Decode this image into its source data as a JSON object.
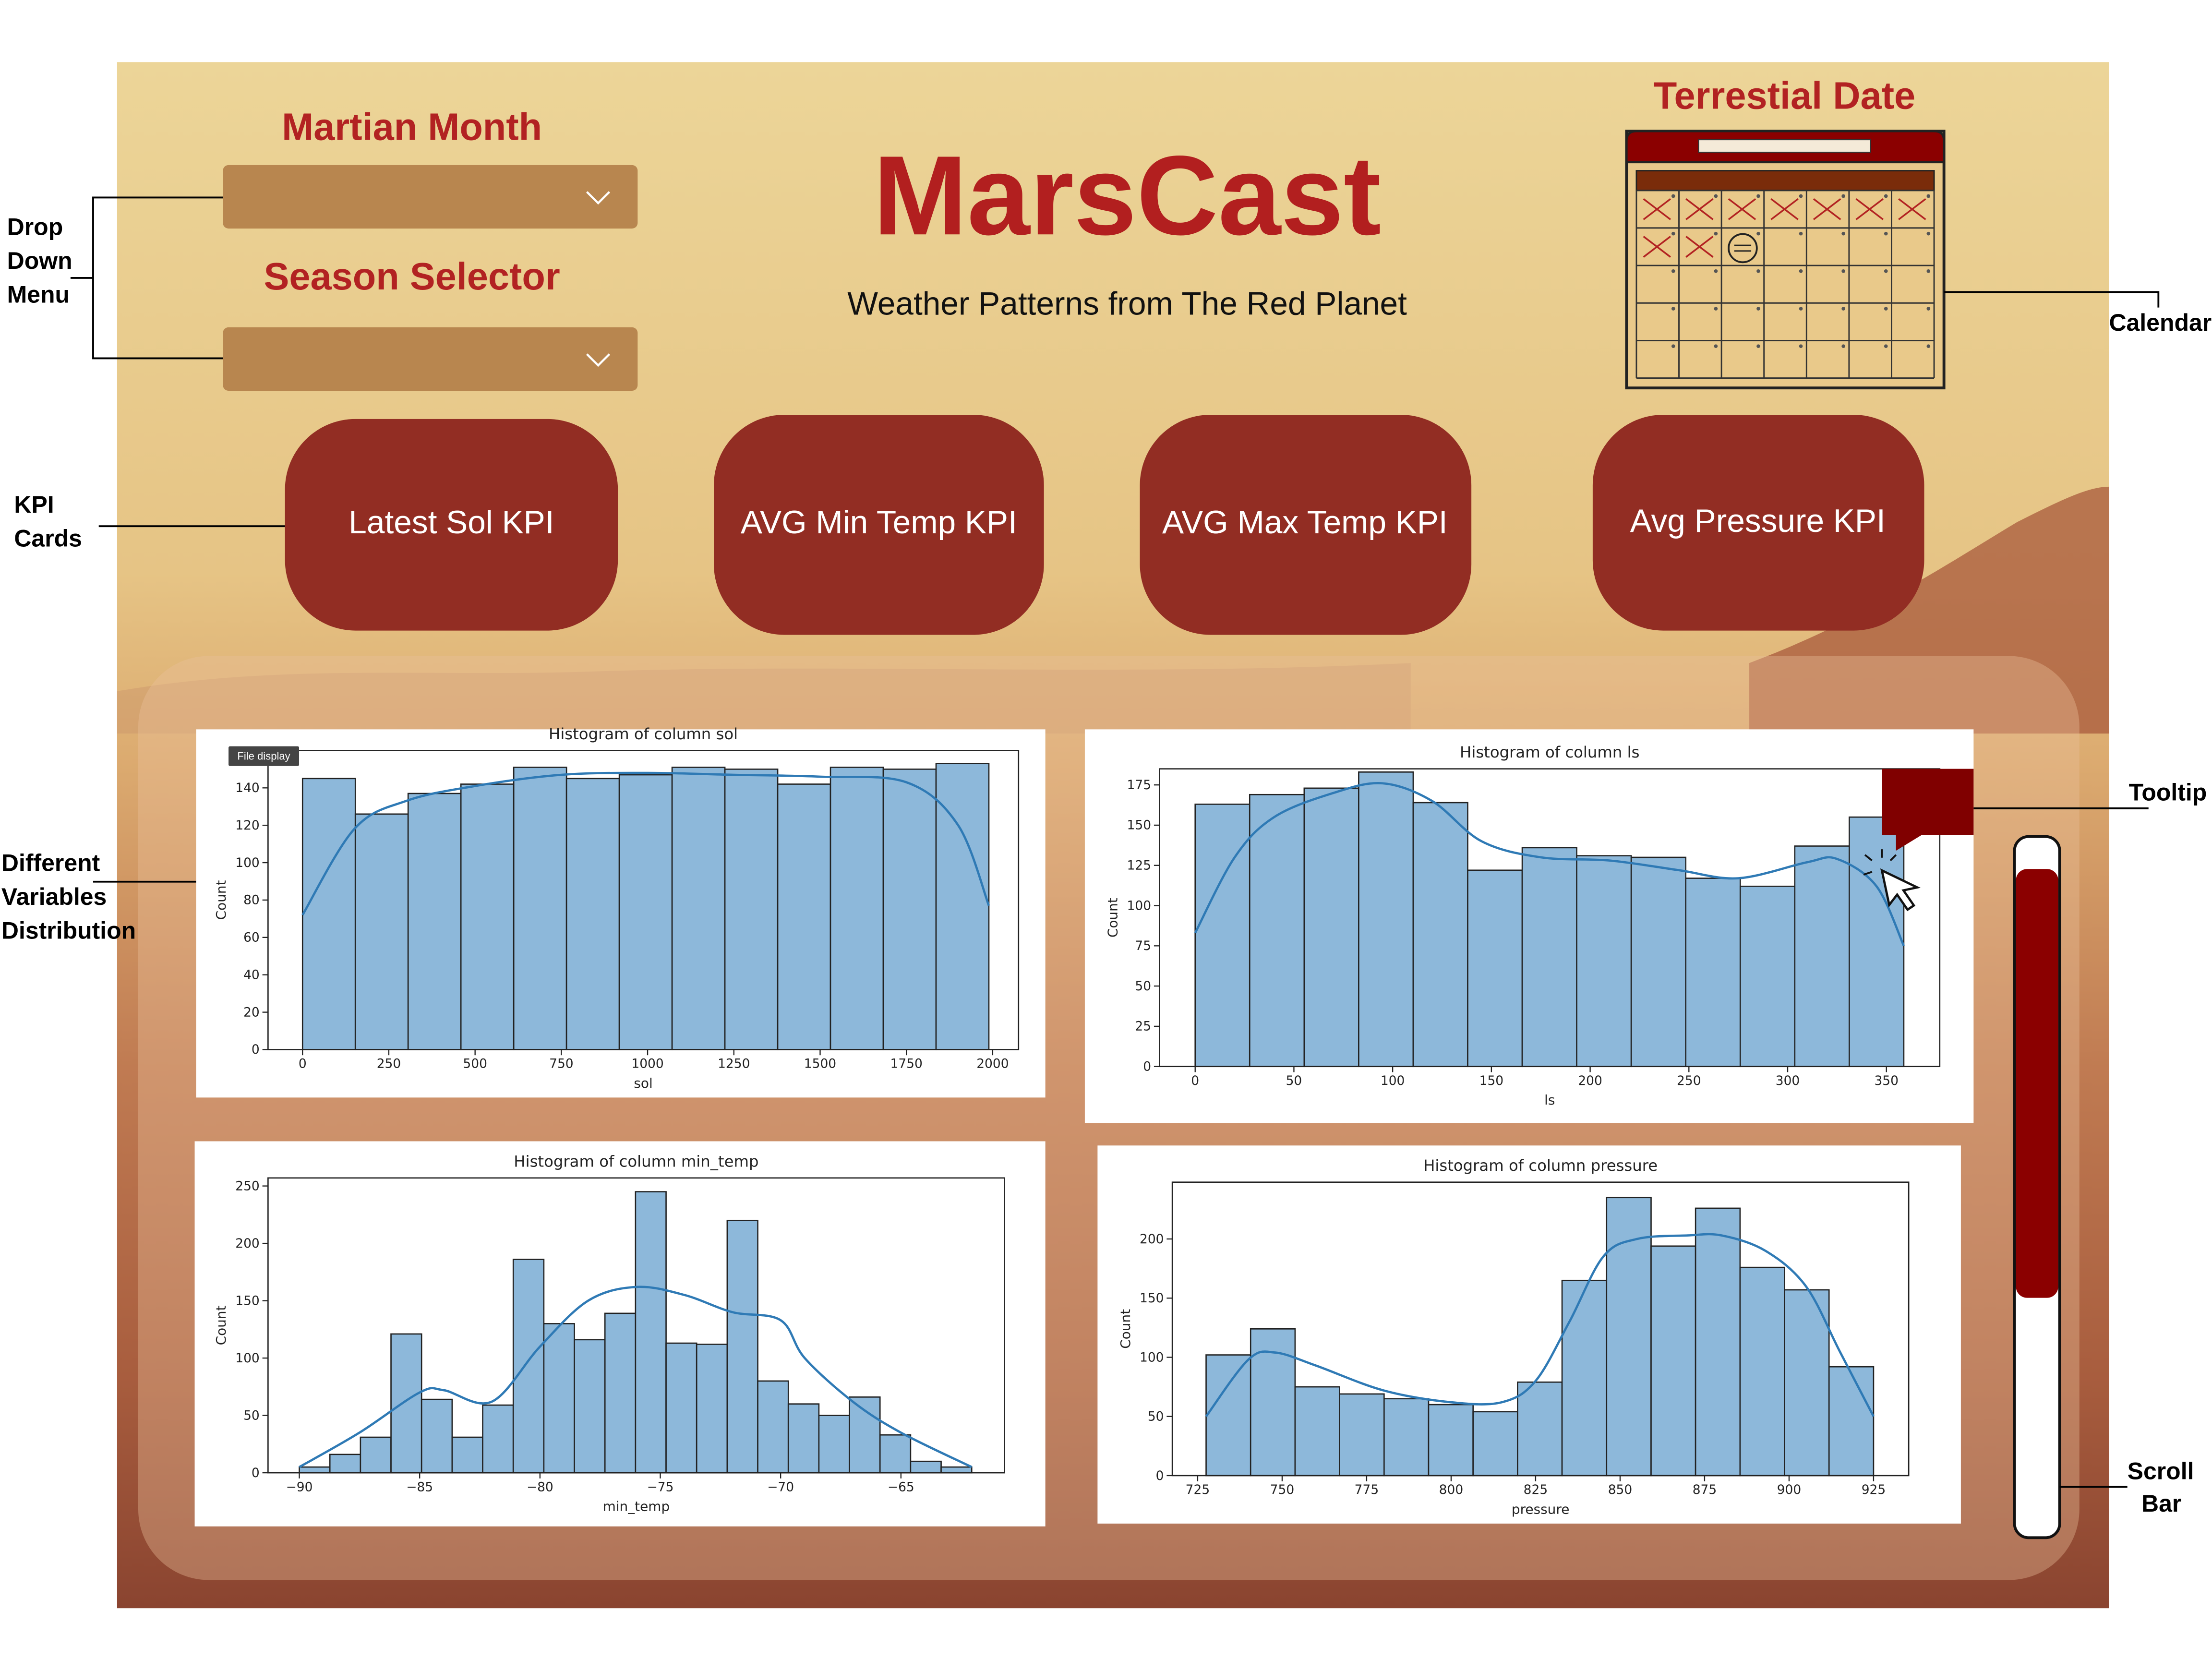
{
  "header": {
    "title": "MarsCast",
    "subtitle": "Weather Patterns from The Red Planet"
  },
  "filters": {
    "martian_month": "Martian Month",
    "season_selector": "Season Selector"
  },
  "calendar": {
    "label": "Terrestial Date"
  },
  "kpi_cards": [
    "Latest Sol KPI",
    "AVG Min Temp KPI",
    "AVG Max Temp KPI",
    "Avg Pressure KPI"
  ],
  "file_display": "File display",
  "annotations": {
    "drop_down_menu": [
      "Drop",
      "Down",
      "Menu"
    ],
    "kpi_cards": [
      "KPI",
      "Cards"
    ],
    "distribution": [
      "Different",
      "Variables",
      "Distribution"
    ],
    "calendar": "Calendar",
    "tooltip": "Tooltip",
    "scroll_bar": [
      "Scroll",
      "Bar"
    ]
  },
  "chart_data": [
    {
      "type": "histogram",
      "title": "Histogram of column sol",
      "x_label": "sol",
      "y_label": "Count",
      "color": "#8db8da",
      "edge_color": "#222222",
      "kde_color": "#2f7ab5",
      "bins": [
        0,
        153,
        306,
        459,
        612,
        765,
        918,
        1071,
        1224,
        1377,
        1530,
        1683,
        1836,
        1989
      ],
      "values": [
        145,
        126,
        137,
        142,
        151,
        145,
        147,
        151,
        150,
        142,
        151,
        150,
        153
      ],
      "kde": {
        "x": [
          0,
          150,
          300,
          500,
          750,
          1000,
          1250,
          1500,
          1750,
          1900,
          1989
        ],
        "y": [
          72,
          118,
          133,
          141,
          147,
          148,
          147,
          146,
          143,
          120,
          77
        ]
      },
      "xlim": [
        -100,
        2075
      ],
      "ylim": [
        0,
        160
      ],
      "xticks": [
        0,
        250,
        500,
        750,
        1000,
        1250,
        1500,
        1750,
        2000
      ],
      "yticks": [
        0,
        20,
        40,
        60,
        80,
        100,
        120,
        140
      ]
    },
    {
      "type": "histogram",
      "title": "Histogram of column ls",
      "x_label": "ls",
      "y_label": "Count",
      "color": "#8db8da",
      "edge_color": "#222222",
      "kde_color": "#2f7ab5",
      "bins": [
        0,
        27.6,
        55.2,
        82.8,
        110.4,
        138,
        165.6,
        193.2,
        220.8,
        248.4,
        276,
        303.6,
        331.2,
        358.8
      ],
      "values": [
        163,
        169,
        173,
        183,
        164,
        122,
        136,
        131,
        130,
        117,
        112,
        137,
        155
      ],
      "kde": {
        "x": [
          0,
          20,
          40,
          70,
          95,
          120,
          145,
          175,
          210,
          245,
          275,
          310,
          325,
          345,
          358.8
        ],
        "y": [
          83,
          130,
          155,
          170,
          176,
          165,
          140,
          130,
          128,
          122,
          117,
          127,
          129,
          112,
          75
        ]
      },
      "xlim": [
        -18,
        377
      ],
      "ylim": [
        0,
        185
      ],
      "xticks": [
        0,
        50,
        100,
        150,
        200,
        250,
        300,
        350
      ],
      "yticks": [
        0,
        25,
        50,
        75,
        100,
        125,
        150,
        175
      ]
    },
    {
      "type": "histogram",
      "title": "Histogram of column min_temp",
      "x_label": "min_temp",
      "y_label": "Count",
      "color": "#8db8da",
      "edge_color": "#222222",
      "kde_color": "#2f7ab5",
      "bins": [
        -90,
        -88.73,
        -87.46,
        -86.19,
        -84.92,
        -83.65,
        -82.38,
        -81.11,
        -79.84,
        -78.57,
        -77.3,
        -76.03,
        -74.76,
        -73.49,
        -72.22,
        -70.95,
        -69.68,
        -68.41,
        -67.14,
        -65.87,
        -64.6,
        -63.33,
        -62.06
      ],
      "values": [
        5,
        16,
        31,
        121,
        64,
        31,
        59,
        186,
        130,
        116,
        139,
        245,
        113,
        112,
        220,
        80,
        60,
        50,
        66,
        33,
        10,
        5
      ],
      "kde": {
        "x": [
          -90,
          -87.5,
          -85,
          -84,
          -82,
          -80,
          -78,
          -76,
          -74,
          -72,
          -70,
          -69,
          -67,
          -65,
          -62.06
        ],
        "y": [
          5,
          35,
          70,
          72,
          62,
          110,
          150,
          162,
          155,
          140,
          133,
          100,
          62,
          35,
          5
        ]
      },
      "xlim": [
        -91.3,
        -60.7
      ],
      "ylim": [
        0,
        257
      ],
      "xticks": [
        {
          "value": -90,
          "label": "−90"
        },
        {
          "value": -85,
          "label": "−85"
        },
        {
          "value": -80,
          "label": "−80"
        },
        {
          "value": -75,
          "label": "−75"
        },
        {
          "value": -70,
          "label": "−70"
        },
        {
          "value": -65,
          "label": "−65"
        }
      ],
      "yticks": [
        0,
        50,
        100,
        150,
        200,
        250
      ]
    },
    {
      "type": "histogram",
      "title": "Histogram of column pressure",
      "x_label": "pressure",
      "y_label": "Count",
      "color": "#8db8da",
      "edge_color": "#222222",
      "kde_color": "#2f7ab5",
      "bins": [
        727.5,
        740.67,
        753.83,
        767,
        780.17,
        793.33,
        806.5,
        819.67,
        832.83,
        846,
        859.17,
        872.33,
        885.5,
        898.67,
        911.83,
        925
      ],
      "values": [
        102,
        124,
        75,
        69,
        65,
        60,
        54,
        79,
        165,
        235,
        194,
        226,
        176,
        157,
        92
      ],
      "kde": {
        "x": [
          727.5,
          740,
          748,
          760,
          780,
          800,
          815,
          825,
          835,
          845,
          855,
          870,
          880,
          893,
          905,
          915,
          925
        ],
        "y": [
          50,
          98,
          104,
          93,
          72,
          62,
          62,
          80,
          130,
          185,
          200,
          203,
          203,
          190,
          160,
          105,
          50
        ]
      },
      "xlim": [
        717.5,
        935.4
      ],
      "ylim": [
        0,
        248
      ],
      "xticks": [
        725,
        750,
        775,
        800,
        825,
        850,
        875,
        900,
        925
      ],
      "yticks": [
        0,
        50,
        100,
        150,
        200
      ]
    }
  ]
}
